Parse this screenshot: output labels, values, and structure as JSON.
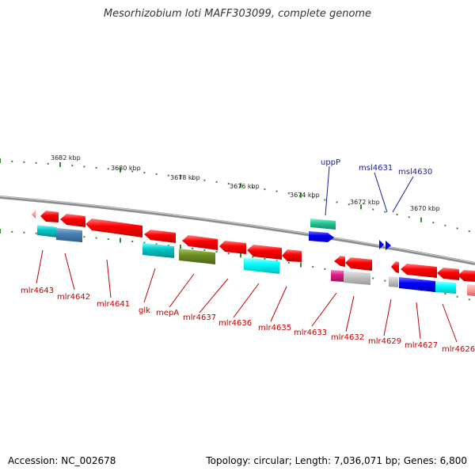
{
  "title": "Mesorhizobium loti MAFF303099, complete genome",
  "footer": {
    "accession": "Accession: NC_002678",
    "summary": "Topology: circular; Length: 7,036,071 bp; Genes: 6,800"
  },
  "colors": {
    "backbone": "#8c8c8c",
    "forward_tick": "#2e8b2e",
    "reverse_tick": "#2e8b2e",
    "label_forward": "#1a1aa6",
    "label_reverse": "#c00000"
  },
  "kbp_labels": [
    "3682 kbp",
    "3680 kbp",
    "3678 kbp",
    "3676 kbp",
    "3674 kbp",
    "3672 kbp",
    "3670 kbp"
  ],
  "genes_forward": [
    {
      "label": "uppP",
      "color": "#20c997"
    },
    {
      "label": "msl4631",
      "color": "#0000ff"
    },
    {
      "label": "msl4630",
      "color": "#0000ff"
    }
  ],
  "genes_reverse": [
    {
      "label": "mlr4643",
      "color": "#00c8c8"
    },
    {
      "label": "mlr4642",
      "color": "#4682b4"
    },
    {
      "label": "mlr4641",
      "color": "#ff0000"
    },
    {
      "label": "glk",
      "color": "#00c8c8"
    },
    {
      "label": "mepA",
      "color": "#6b8e23"
    },
    {
      "label": "mlr4637",
      "color": "#ff0000"
    },
    {
      "label": "mlr4636",
      "color": "#00ffff"
    },
    {
      "label": "mlr4635",
      "color": "#ff0000"
    },
    {
      "label": "mlr4633",
      "color": "#ff0000"
    },
    {
      "label": "mlr4632",
      "color": "#e01e8c"
    },
    {
      "label": "mlr4629",
      "color": "#b0b0b0"
    },
    {
      "label": "mlr4627",
      "color": "#0000ff"
    },
    {
      "label": "mlr4626",
      "color": "#ff0000"
    }
  ]
}
